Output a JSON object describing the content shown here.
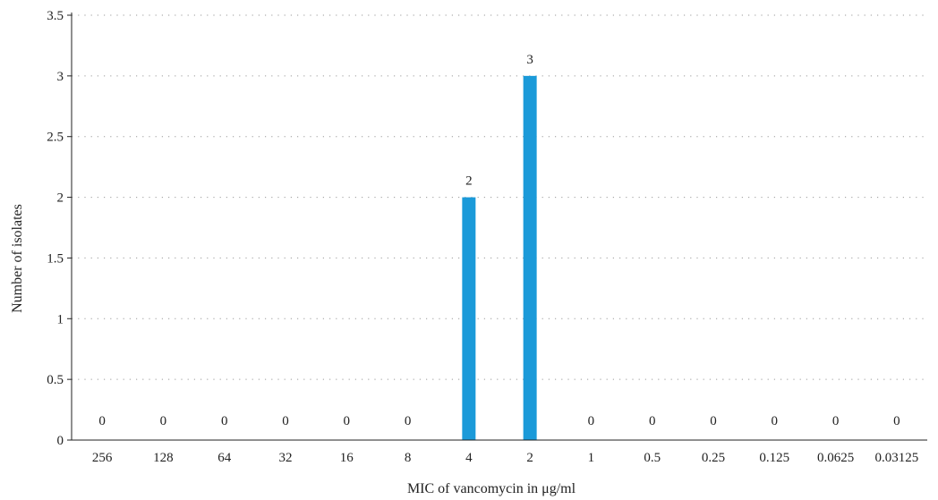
{
  "chart_data": {
    "type": "bar",
    "title": "",
    "xlabel": "MIC of vancomycin in μg/ml",
    "ylabel": "Number of isolates",
    "categories": [
      "256",
      "128",
      "64",
      "32",
      "16",
      "8",
      "4",
      "2",
      "1",
      "0.5",
      "0.25",
      "0.125",
      "0.0625",
      "0.03125"
    ],
    "values": [
      0,
      0,
      0,
      0,
      0,
      0,
      2,
      3,
      0,
      0,
      0,
      0,
      0,
      0
    ],
    "data_labels": [
      "0",
      "0",
      "0",
      "0",
      "0",
      "0",
      "2",
      "3",
      "0",
      "0",
      "0",
      "0",
      "0",
      "0"
    ],
    "ylim": [
      0,
      3.5
    ],
    "yticks": [
      "0",
      "0.5",
      "1",
      "1.5",
      "2",
      "2.5",
      "3",
      "3.5"
    ],
    "grid": "horizontal dotted",
    "legend": "none",
    "colors": {
      "bar": "#1b9ad9",
      "grid": "#9a9a9a",
      "axis": "#222222",
      "text": "#222222"
    }
  }
}
